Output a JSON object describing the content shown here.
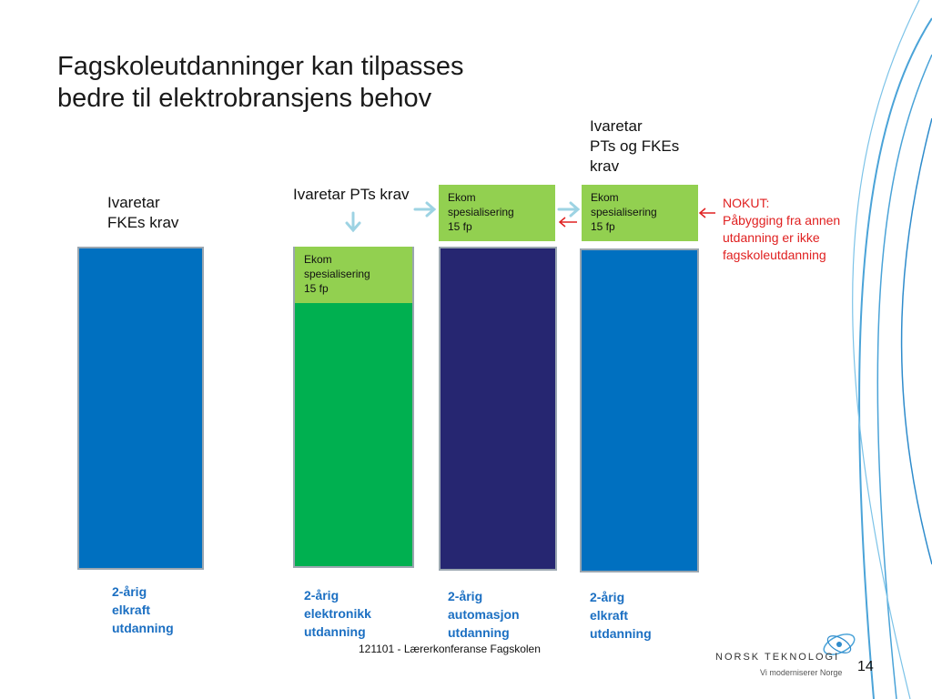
{
  "title": {
    "line1": "Fagskoleutdanninger kan tilpasses",
    "line2": "bedre til elektrobransjens behov"
  },
  "labels": {
    "fke": "Ivaretar\nFKEs krav",
    "pt": "Ivaretar PTs krav",
    "pt_fke": "Ivaretar\nPTs og FKEs\nkrav"
  },
  "columns": [
    {
      "caption": "2-årig\nelkraft\nutdanning",
      "color": "#0070c0",
      "ekom": ""
    },
    {
      "caption": "2-årig\nelektronikk\nutdanning",
      "color": "#00b050",
      "ekom": "Ekom\nspesialisering\n15 fp"
    },
    {
      "caption": "2-årig\nautomasjon\nutdanning",
      "color": "#262671",
      "ekom": "Ekom\nspesialisering\n15 fp"
    },
    {
      "caption": "2-årig\nelkraft\nutdanning",
      "color": "#0070c0",
      "ekom": "Ekom\nspesialisering\n15 fp"
    }
  ],
  "nokut": "NOKUT:\nPåbygging fra annen\nutdanning er ikke\nfagskoleutdanning",
  "footer": "121101 - Lærerkonferanse Fagskolen",
  "logo": {
    "name": "NORSK TEKNOLOGI",
    "tagline": "Vi moderniserer Norge"
  },
  "page_number": "14",
  "colors": {
    "arrow_light": "#9dd3e3",
    "arrow_red": "#e02020",
    "ekom_green": "#92d050",
    "deco_lines": "#4aa3d8"
  }
}
